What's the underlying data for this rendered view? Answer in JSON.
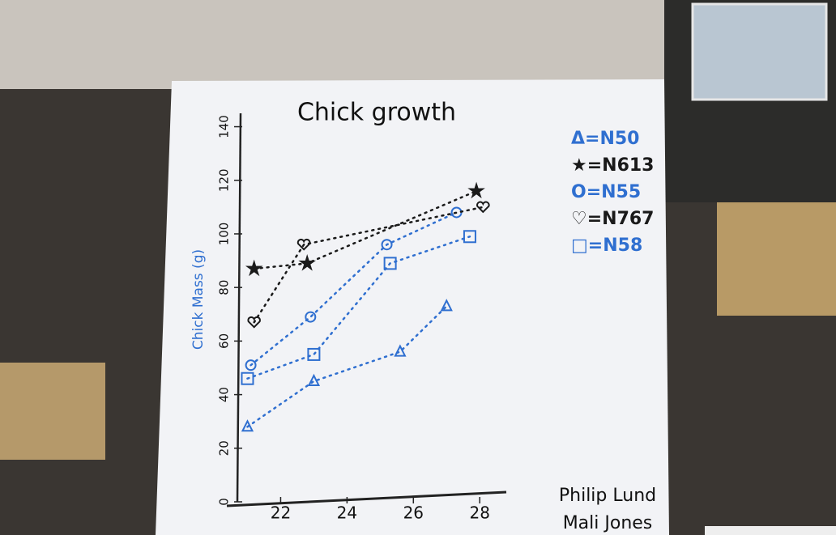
{
  "chart_data": {
    "type": "line",
    "title": "Chick growth",
    "y_label": "Chick Mass (g)",
    "xlim": [
      20.5,
      28.8
    ],
    "xticks": [
      22,
      24,
      26,
      28
    ],
    "ylim": [
      0,
      145
    ],
    "yticks": [
      0,
      20,
      40,
      60,
      80,
      100,
      120,
      140
    ],
    "series": [
      {
        "name": "Δ=N50",
        "color": "#2f6fd0",
        "marker": "triangle",
        "x": [
          21,
          23,
          25.6,
          27
        ],
        "values": [
          28,
          45,
          56,
          73
        ]
      },
      {
        "name": "★=N613",
        "color": "#1a1a1a",
        "marker": "star",
        "x": [
          21.2,
          22.8,
          27.9
        ],
        "values": [
          87,
          89,
          116
        ]
      },
      {
        "name": "O=N55",
        "color": "#2f6fd0",
        "marker": "circle",
        "x": [
          21.1,
          22.9,
          25.2,
          27.3
        ],
        "values": [
          51,
          69,
          96,
          108
        ]
      },
      {
        "name": "♡=N767",
        "color": "#1a1a1a",
        "marker": "heart",
        "x": [
          21.2,
          22.7,
          28.1
        ],
        "values": [
          67,
          96,
          110
        ]
      },
      {
        "name": "□=N58",
        "color": "#2f6fd0",
        "marker": "square",
        "x": [
          21,
          23,
          25.3,
          27.7
        ],
        "values": [
          46,
          55,
          89,
          99
        ]
      }
    ],
    "annotations": [
      "Philip Lund",
      "Mali Jones"
    ]
  }
}
